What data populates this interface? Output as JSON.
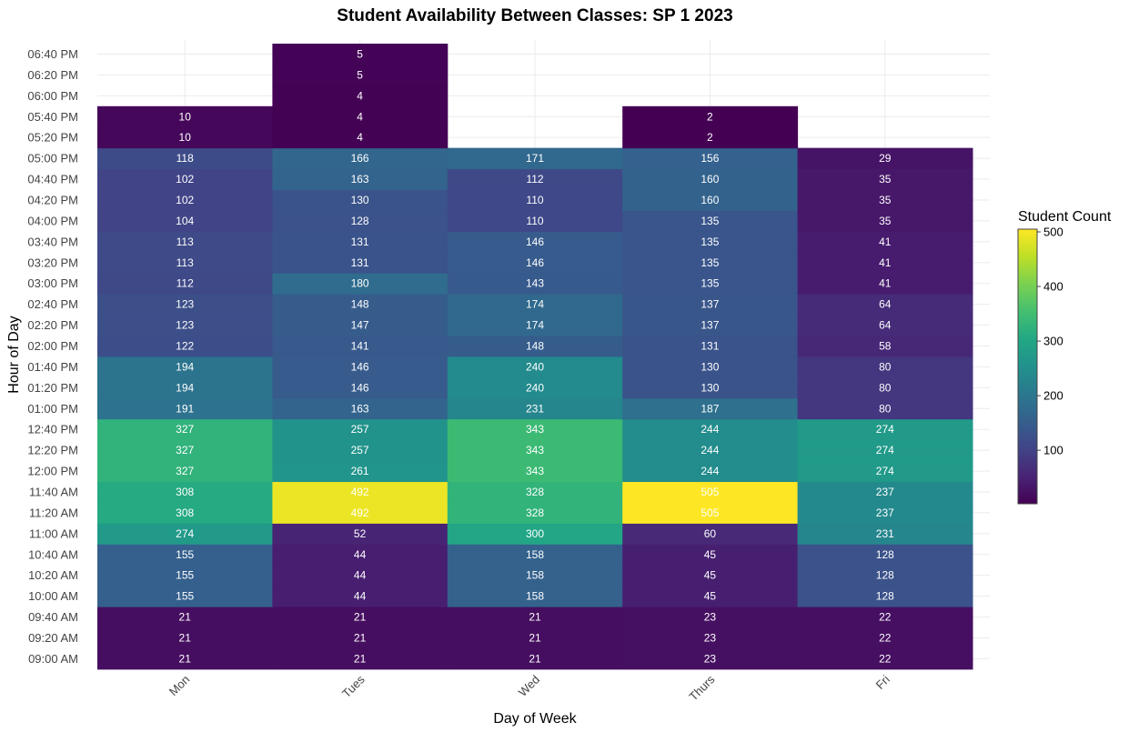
{
  "chart_data": {
    "type": "heatmap",
    "title": "Student Availability Between Classes:  SP 1   2023",
    "xlabel": "Day of Week",
    "ylabel": "Hour of Day",
    "x_categories": [
      "Mon",
      "Tues",
      "Wed",
      "Thurs",
      "Fri"
    ],
    "y_categories": [
      "09:00 AM",
      "09:20 AM",
      "09:40 AM",
      "10:00 AM",
      "10:20 AM",
      "10:40 AM",
      "11:00 AM",
      "11:20 AM",
      "11:40 AM",
      "12:00 PM",
      "12:20 PM",
      "12:40 PM",
      "01:00 PM",
      "01:20 PM",
      "01:40 PM",
      "02:00 PM",
      "02:20 PM",
      "02:40 PM",
      "03:00 PM",
      "03:20 PM",
      "03:40 PM",
      "04:00 PM",
      "04:20 PM",
      "04:40 PM",
      "05:00 PM",
      "05:20 PM",
      "05:40 PM",
      "06:00 PM",
      "06:20 PM",
      "06:40 PM"
    ],
    "values": {
      "Mon": [
        21,
        21,
        21,
        155,
        155,
        155,
        274,
        308,
        308,
        327,
        327,
        327,
        191,
        194,
        194,
        122,
        123,
        123,
        112,
        113,
        113,
        104,
        102,
        102,
        118,
        10,
        10,
        null,
        null,
        null
      ],
      "Tues": [
        21,
        21,
        21,
        44,
        44,
        44,
        52,
        492,
        492,
        261,
        257,
        257,
        163,
        146,
        146,
        141,
        147,
        148,
        180,
        131,
        131,
        128,
        130,
        163,
        166,
        4,
        4,
        4,
        5,
        5
      ],
      "Wed": [
        21,
        21,
        21,
        158,
        158,
        158,
        300,
        328,
        328,
        343,
        343,
        343,
        231,
        240,
        240,
        148,
        174,
        174,
        143,
        146,
        146,
        110,
        110,
        112,
        171,
        null,
        null,
        null,
        null,
        null
      ],
      "Thurs": [
        23,
        23,
        23,
        45,
        45,
        45,
        60,
        505,
        505,
        244,
        244,
        244,
        187,
        130,
        130,
        131,
        137,
        137,
        135,
        135,
        135,
        135,
        160,
        160,
        156,
        2,
        2,
        null,
        null,
        null
      ],
      "Fri": [
        22,
        22,
        22,
        128,
        128,
        128,
        231,
        237,
        237,
        274,
        274,
        274,
        80,
        80,
        80,
        58,
        64,
        64,
        41,
        41,
        41,
        35,
        35,
        35,
        29,
        null,
        null,
        null,
        null,
        null
      ]
    },
    "colorscale": "viridis",
    "color_min": 2,
    "color_max": 505,
    "legend_title": "Student Count",
    "legend_ticks": [
      100,
      200,
      300,
      400,
      500
    ],
    "legend_placement": "right",
    "grid": true
  }
}
